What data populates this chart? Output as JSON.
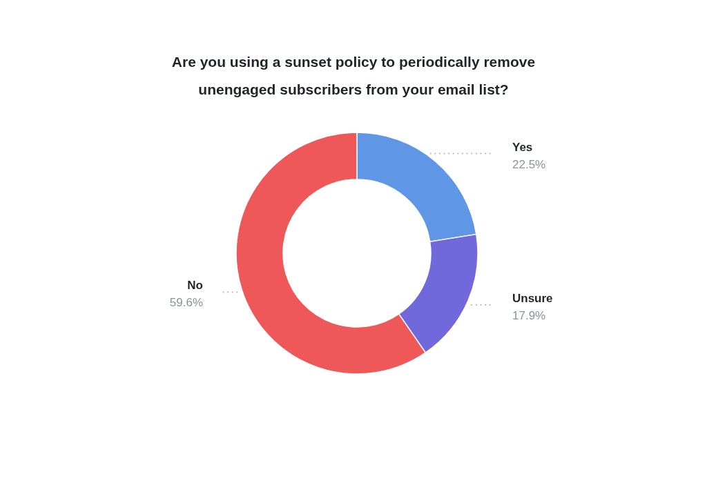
{
  "chart_data": {
    "type": "donut",
    "title": "Are you using a sunset policy to periodically remove unengaged subscribers from your email list?",
    "categories": [
      "Yes",
      "Unsure",
      "No"
    ],
    "values": [
      22.5,
      17.9,
      59.6
    ],
    "colors": [
      "#6096e6",
      "#7068db",
      "#ef5858"
    ],
    "value_labels": [
      "22.5%",
      "17.9%",
      "59.6%"
    ]
  }
}
